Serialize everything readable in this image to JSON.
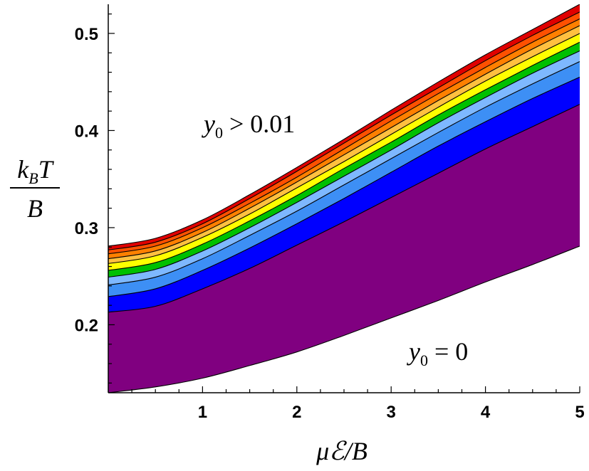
{
  "chart_data": {
    "type": "area",
    "xlabel": "μℰ/B",
    "ylabel_numerator": "k_B T",
    "ylabel_denominator": "B",
    "xlim": [
      0,
      5
    ],
    "ylim": [
      0.13,
      0.53
    ],
    "x_ticks": [
      1,
      2,
      3,
      4,
      5
    ],
    "x_tick_labels": [
      "1",
      "2",
      "3",
      "4",
      "5"
    ],
    "y_ticks": [
      0.2,
      0.3,
      0.4,
      0.5
    ],
    "y_tick_labels": [
      "0.2",
      "0.3",
      "0.4",
      "0.5"
    ],
    "grid": false,
    "annotations": [
      {
        "text": "y₀ > 0.01",
        "x": 1.0,
        "y": 0.405
      },
      {
        "text": "y₀ = 0",
        "x": 3.2,
        "y": 0.17
      }
    ],
    "x": [
      0,
      0.5,
      1,
      1.5,
      2,
      2.5,
      3,
      3.5,
      4,
      4.5,
      5
    ],
    "bands": [
      {
        "color": "#800080",
        "lower": [
          0.13,
          0.136,
          0.145,
          0.158,
          0.172,
          0.189,
          0.207,
          0.225,
          0.244,
          0.262,
          0.281
        ],
        "upper": [
          0.213,
          0.219,
          0.237,
          0.258,
          0.282,
          0.306,
          0.331,
          0.356,
          0.381,
          0.404,
          0.427
        ]
      },
      {
        "color": "#0000ff",
        "lower": [
          0.213,
          0.219,
          0.237,
          0.258,
          0.282,
          0.306,
          0.331,
          0.356,
          0.381,
          0.404,
          0.427
        ],
        "upper": [
          0.229,
          0.237,
          0.256,
          0.279,
          0.304,
          0.33,
          0.357,
          0.384,
          0.409,
          0.433,
          0.455
        ]
      },
      {
        "color": "#3d8ff5",
        "lower": [
          0.229,
          0.237,
          0.256,
          0.279,
          0.304,
          0.33,
          0.357,
          0.384,
          0.409,
          0.433,
          0.455
        ],
        "upper": [
          0.241,
          0.249,
          0.268,
          0.292,
          0.317,
          0.344,
          0.371,
          0.398,
          0.424,
          0.448,
          0.471
        ]
      },
      {
        "color": "#7eb8ff",
        "lower": [
          0.241,
          0.249,
          0.268,
          0.292,
          0.317,
          0.344,
          0.371,
          0.398,
          0.424,
          0.448,
          0.471
        ],
        "upper": [
          0.249,
          0.257,
          0.276,
          0.3,
          0.326,
          0.353,
          0.38,
          0.408,
          0.434,
          0.459,
          0.482
        ]
      },
      {
        "color": "#00c000",
        "lower": [
          0.249,
          0.257,
          0.276,
          0.3,
          0.326,
          0.353,
          0.38,
          0.408,
          0.434,
          0.459,
          0.482
        ],
        "upper": [
          0.256,
          0.264,
          0.283,
          0.307,
          0.333,
          0.361,
          0.388,
          0.416,
          0.442,
          0.467,
          0.491
        ]
      },
      {
        "color": "#ffff00",
        "lower": [
          0.256,
          0.264,
          0.283,
          0.307,
          0.333,
          0.361,
          0.388,
          0.416,
          0.442,
          0.467,
          0.491
        ],
        "upper": [
          0.263,
          0.271,
          0.29,
          0.314,
          0.341,
          0.368,
          0.396,
          0.424,
          0.451,
          0.476,
          0.5
        ]
      },
      {
        "color": "#ffc040",
        "lower": [
          0.263,
          0.271,
          0.29,
          0.314,
          0.341,
          0.368,
          0.396,
          0.424,
          0.451,
          0.476,
          0.5
        ],
        "upper": [
          0.268,
          0.276,
          0.295,
          0.32,
          0.347,
          0.375,
          0.403,
          0.431,
          0.458,
          0.484,
          0.508
        ]
      },
      {
        "color": "#ff8000",
        "lower": [
          0.268,
          0.276,
          0.295,
          0.32,
          0.347,
          0.375,
          0.403,
          0.431,
          0.458,
          0.484,
          0.508
        ],
        "upper": [
          0.273,
          0.281,
          0.3,
          0.325,
          0.352,
          0.381,
          0.41,
          0.438,
          0.465,
          0.491,
          0.515
        ]
      },
      {
        "color": "#ff5000",
        "lower": [
          0.273,
          0.281,
          0.3,
          0.325,
          0.352,
          0.381,
          0.41,
          0.438,
          0.465,
          0.491,
          0.515
        ],
        "upper": [
          0.277,
          0.285,
          0.304,
          0.33,
          0.358,
          0.387,
          0.416,
          0.444,
          0.472,
          0.498,
          0.522
        ]
      },
      {
        "color": "#e00000",
        "lower": [
          0.277,
          0.285,
          0.304,
          0.33,
          0.358,
          0.387,
          0.416,
          0.444,
          0.472,
          0.498,
          0.522
        ],
        "upper": [
          0.281,
          0.289,
          0.308,
          0.334,
          0.362,
          0.391,
          0.421,
          0.45,
          0.478,
          0.504,
          0.53
        ]
      }
    ]
  }
}
